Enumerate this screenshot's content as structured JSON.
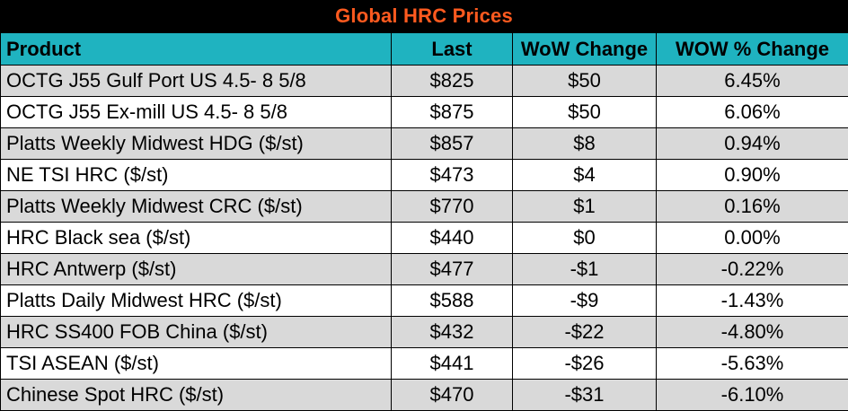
{
  "title": "Global HRC Prices",
  "columns": [
    "Product",
    "Last",
    "WoW Change",
    "WOW % Change"
  ],
  "rows": [
    {
      "product": "OCTG J55 Gulf Port US 4.5- 8 5/8",
      "last": "$825",
      "wow_change": "$50",
      "wow_pct": "6.45%"
    },
    {
      "product": "OCTG J55 Ex-mill US 4.5- 8 5/8",
      "last": "$875",
      "wow_change": "$50",
      "wow_pct": "6.06%"
    },
    {
      "product": "Platts Weekly Midwest HDG ($/st)",
      "last": "$857",
      "wow_change": "$8",
      "wow_pct": "0.94%"
    },
    {
      "product": "NE TSI HRC ($/st)",
      "last": "$473",
      "wow_change": "$4",
      "wow_pct": "0.90%"
    },
    {
      "product": "Platts Weekly Midwest CRC ($/st)",
      "last": "$770",
      "wow_change": "$1",
      "wow_pct": "0.16%"
    },
    {
      "product": "HRC Black sea ($/st)",
      "last": "$440",
      "wow_change": "$0",
      "wow_pct": "0.00%"
    },
    {
      "product": "HRC Antwerp ($/st)",
      "last": "$477",
      "wow_change": "-$1",
      "wow_pct": "-0.22%"
    },
    {
      "product": "Platts Daily Midwest HRC ($/st)",
      "last": "$588",
      "wow_change": "-$9",
      "wow_pct": "-1.43%"
    },
    {
      "product": "HRC SS400 FOB China ($/st)",
      "last": "$432",
      "wow_change": "-$22",
      "wow_pct": "-4.80%"
    },
    {
      "product": "TSI ASEAN ($/st)",
      "last": "$441",
      "wow_change": "-$26",
      "wow_pct": "-5.63%"
    },
    {
      "product": "Chinese Spot HRC ($/st)",
      "last": "$470",
      "wow_change": "-$31",
      "wow_pct": "-6.10%"
    }
  ],
  "colors": {
    "title_bg": "#000000",
    "title_text": "#ff5a1f",
    "header_bg": "#1fb3c0",
    "row_alt_bg": "#d9d9d9",
    "row_bg": "#ffffff"
  }
}
